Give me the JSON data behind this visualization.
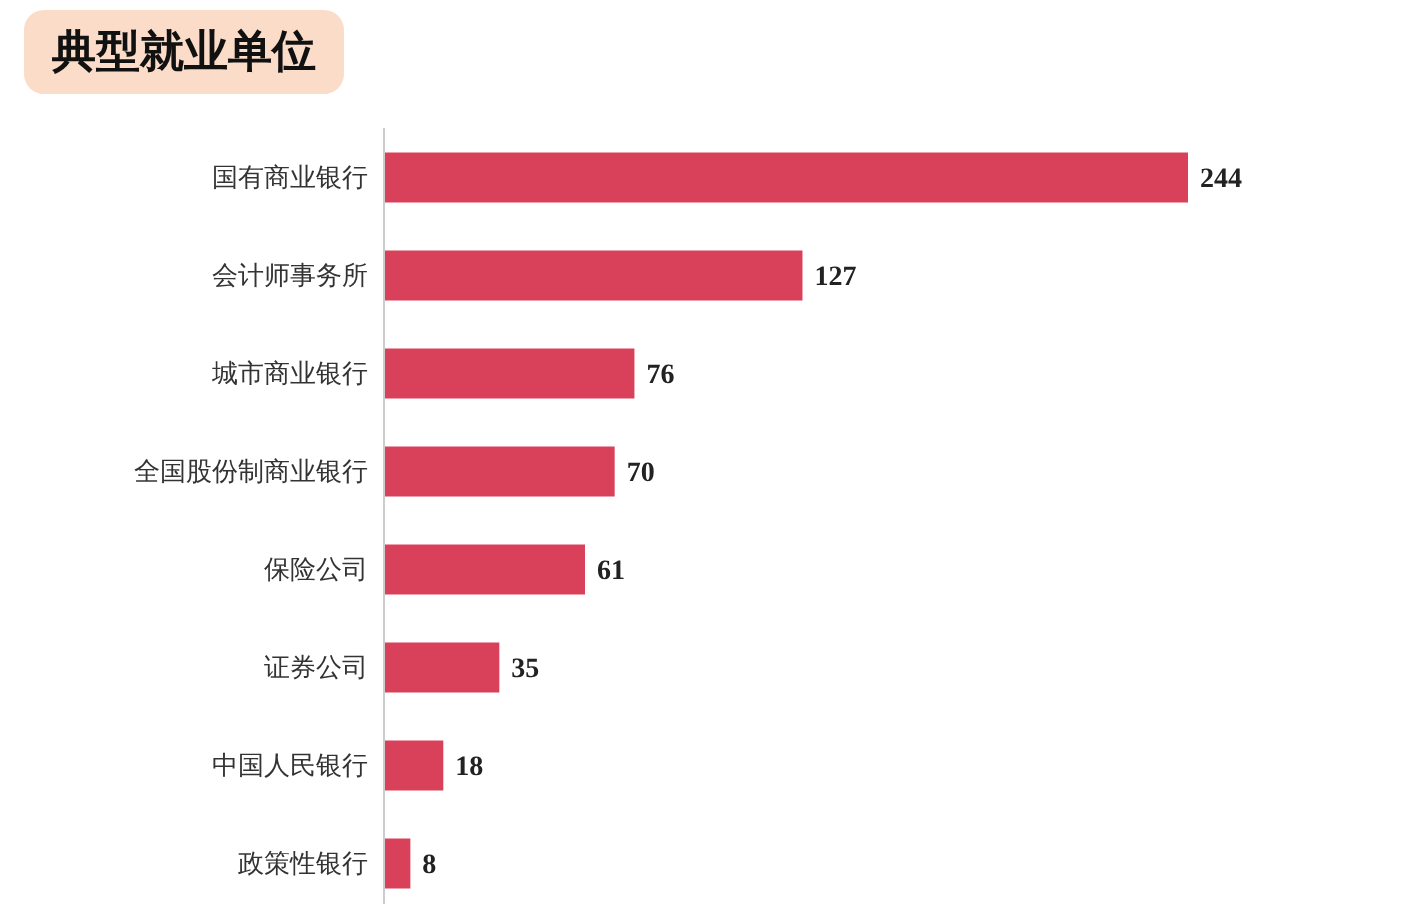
{
  "chart_data": {
    "type": "bar",
    "orientation": "horizontal",
    "title": "典型就业单位",
    "categories": [
      "国有商业银行",
      "会计师事务所",
      "城市商业银行",
      "全国股份制商业银行",
      "保险公司",
      "证券公司",
      "中国人民银行",
      "政策性银行"
    ],
    "values": [
      244,
      127,
      76,
      70,
      61,
      35,
      18,
      8
    ],
    "color": "#d9405a",
    "data_labels": true
  }
}
